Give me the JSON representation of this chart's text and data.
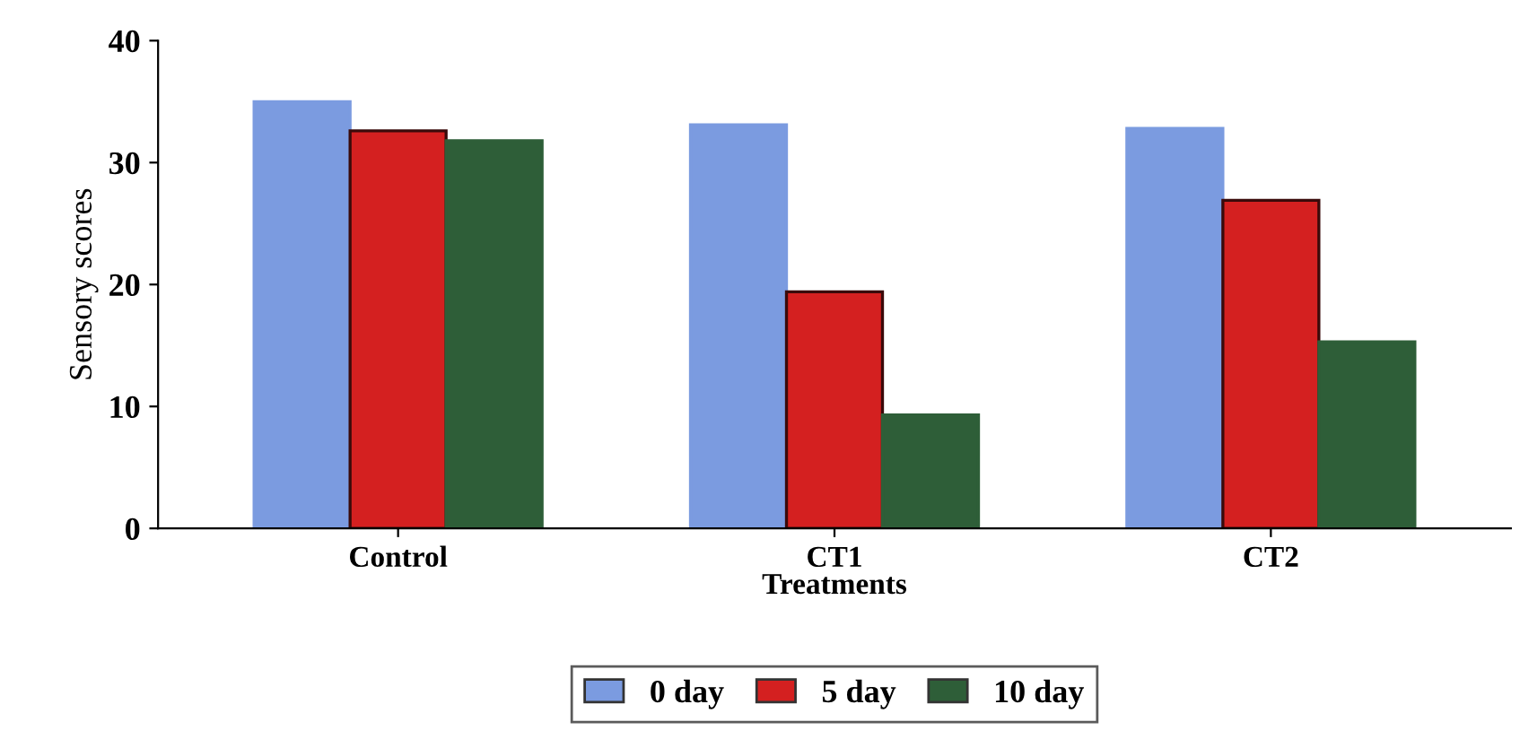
{
  "chart_data": {
    "type": "bar",
    "xlabel": "Treatments",
    "ylabel": "Sensory scores",
    "categories": [
      "Control",
      "CT1",
      "CT2"
    ],
    "series": [
      {
        "name": "0 day",
        "color": "#7b9be0",
        "values": [
          35.0,
          33.1,
          32.8
        ]
      },
      {
        "name": "5 day",
        "color": "#d42020",
        "values": [
          32.6,
          19.4,
          26.9
        ]
      },
      {
        "name": "10 day",
        "color": "#2e5e38",
        "values": [
          31.8,
          9.3,
          15.3
        ]
      }
    ],
    "ylim": [
      0,
      40
    ],
    "yticks": [
      0,
      10,
      20,
      30,
      40
    ],
    "grid": false,
    "legend": "bottom"
  }
}
